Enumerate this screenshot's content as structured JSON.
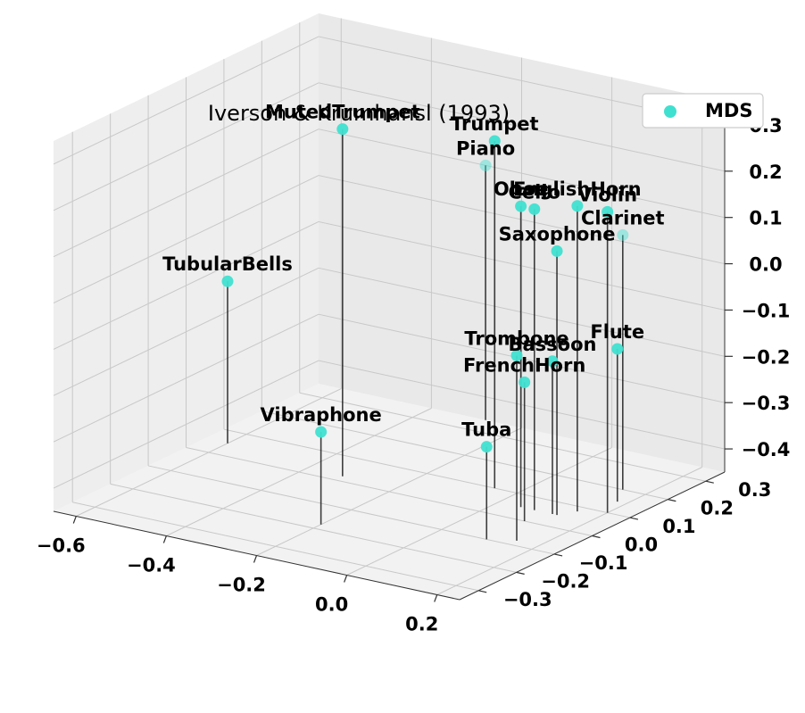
{
  "chart_data": {
    "type": "scatter",
    "projection": "3d",
    "title": "Iverson & Krumhansl (1993)",
    "xlabel": "",
    "ylabel": "",
    "zlabel": "",
    "grid": true,
    "legend": {
      "position": "top-right",
      "entries": [
        "MDS"
      ]
    },
    "series": [
      {
        "name": "MDS",
        "color": "#40e0d0",
        "marker": "circle",
        "drop_line_color": "#000000",
        "points": [
          {
            "label": "TubularBells",
            "x": -0.6,
            "y": 0.05,
            "z": -0.1
          },
          {
            "label": "MutedTrumpet",
            "x": -0.32,
            "y": 0.02,
            "z": 0.3
          },
          {
            "label": "Vibraphone",
            "x": -0.2,
            "y": -0.18,
            "z": -0.25
          },
          {
            "label": "Piano",
            "x": -0.28,
            "y": 0.35,
            "z": 0.1
          },
          {
            "label": "Trumpet",
            "x": -0.05,
            "y": 0.1,
            "z": 0.3
          },
          {
            "label": "Oboe",
            "x": 0.05,
            "y": 0.05,
            "z": 0.2
          },
          {
            "label": "Cello",
            "x": 0.08,
            "y": 0.05,
            "z": 0.2
          },
          {
            "label": "EnglishHorn",
            "x": 0.15,
            "y": 0.08,
            "z": 0.21
          },
          {
            "label": "Violin",
            "x": 0.2,
            "y": 0.1,
            "z": 0.2
          },
          {
            "label": "Saxophone",
            "x": 0.13,
            "y": 0.05,
            "z": 0.12
          },
          {
            "label": "Clarinet",
            "x": 0.15,
            "y": 0.2,
            "z": 0.1
          },
          {
            "label": "Trombone",
            "x": 0.15,
            "y": -0.08,
            "z": -0.05
          },
          {
            "label": "FrenchHorn",
            "x": 0.1,
            "y": 0.0,
            "z": -0.15
          },
          {
            "label": "Flute",
            "x": 0.18,
            "y": 0.15,
            "z": -0.12
          },
          {
            "label": "Bassoon",
            "x": 0.12,
            "y": 0.05,
            "z": -0.12
          },
          {
            "label": "Tuba",
            "x": 0.1,
            "y": -0.1,
            "z": -0.25
          }
        ]
      }
    ],
    "xlim": [
      -0.65,
      0.25
    ],
    "ylim": [
      -0.35,
      0.35
    ],
    "zlim": [
      -0.45,
      0.35
    ],
    "xticks": [
      "−0.6",
      "−0.4",
      "−0.2",
      "0.0",
      "0.2"
    ],
    "yticks": [
      "−0.3",
      "−0.2",
      "−0.1",
      "0.0",
      "0.1",
      "0.2",
      "0.3"
    ],
    "zticks": [
      "−0.4",
      "−0.3",
      "−0.2",
      "−0.1",
      "0.0",
      "0.1",
      "0.2",
      "0.3"
    ]
  }
}
